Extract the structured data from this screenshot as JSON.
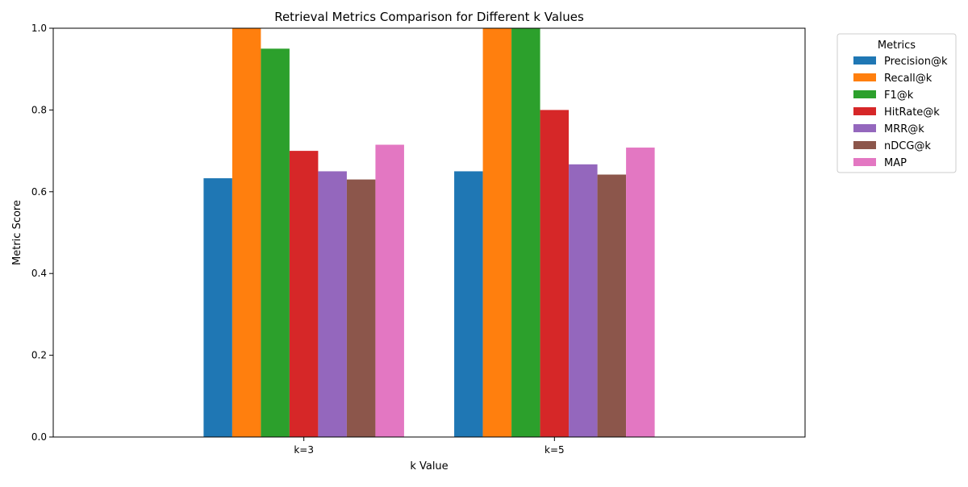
{
  "chart_data": {
    "type": "bar",
    "title": "Retrieval Metrics Comparison for Different k Values",
    "xlabel": "k Value",
    "ylabel": "Metric Score",
    "categories": [
      "k=3",
      "k=5"
    ],
    "ylim": [
      0,
      1.0
    ],
    "yticks": [
      "0.0",
      "0.2",
      "0.4",
      "0.6",
      "0.8",
      "1.0"
    ],
    "grid": false,
    "legend": {
      "title": "Metrics",
      "placement": "outside-top-right"
    },
    "series": [
      {
        "name": "Precision@k",
        "color": "#1f77b4",
        "values": [
          0.633,
          0.65
        ]
      },
      {
        "name": "Recall@k",
        "color": "#ff7f0e",
        "values": [
          1.0,
          1.0
        ]
      },
      {
        "name": "F1@k",
        "color": "#2ca02c",
        "values": [
          0.95,
          1.0
        ]
      },
      {
        "name": "HitRate@k",
        "color": "#d62728",
        "values": [
          0.7,
          0.8
        ]
      },
      {
        "name": "MRR@k",
        "color": "#9467bd",
        "values": [
          0.65,
          0.667
        ]
      },
      {
        "name": "nDCG@k",
        "color": "#8c564b",
        "values": [
          0.63,
          0.642
        ]
      },
      {
        "name": "MAP",
        "color": "#e377c2",
        "values": [
          0.715,
          0.708
        ]
      }
    ]
  }
}
